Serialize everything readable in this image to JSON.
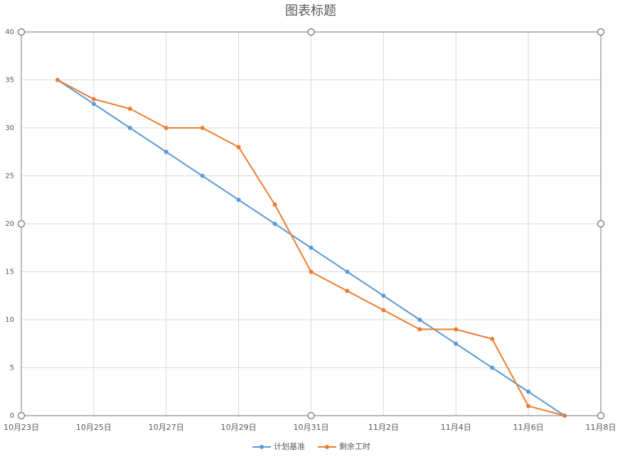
{
  "chart_data": {
    "type": "line",
    "title": "图表标题",
    "categories": [
      "10月23日",
      null,
      "10月25日",
      null,
      "10月27日",
      null,
      "10月29日",
      null,
      "10月31日",
      null,
      "11月2日",
      null,
      "11月4日",
      null,
      "11月6日",
      null,
      "11月8日"
    ],
    "series": [
      {
        "name": "计划基准",
        "color": "#5b9bd5",
        "values": [
          null,
          35,
          32.5,
          30,
          27.5,
          25,
          22.5,
          20,
          17.5,
          15,
          12.5,
          10,
          7.5,
          5,
          2.5,
          0,
          null
        ]
      },
      {
        "name": "剩余工时",
        "color": "#ed7d31",
        "values": [
          null,
          35,
          33,
          32,
          30,
          30,
          28,
          22,
          15,
          13,
          11,
          9,
          9,
          8,
          1,
          0,
          null
        ]
      }
    ],
    "ylim": [
      0,
      40
    ],
    "yticks": [
      0,
      5,
      10,
      15,
      20,
      25,
      30,
      35,
      40
    ],
    "grid": true,
    "legend": "bottom"
  }
}
